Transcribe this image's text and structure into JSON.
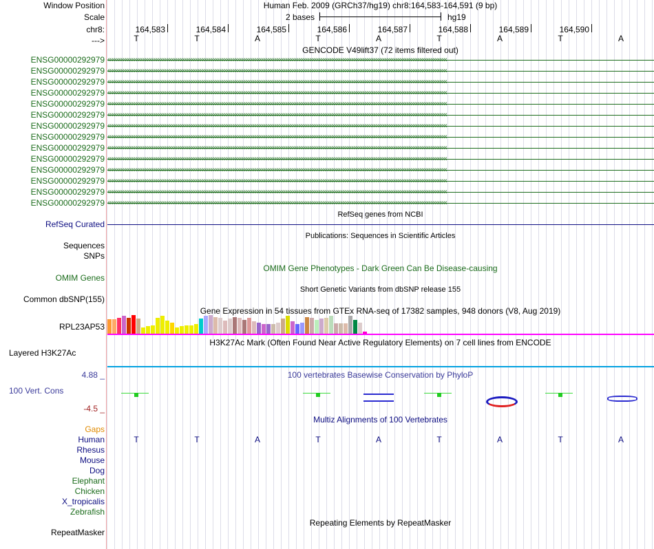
{
  "header": {
    "window_position_label": "Window Position",
    "assembly_title": "Human Feb. 2009 (GRCh37/hg19)   chr8:164,583-164,591 (9 bp)",
    "scale_label": "Scale",
    "scale_bases": "2 bases",
    "scale_assembly": "hg19",
    "chrom_label": "chr8:",
    "strand_label": "--->"
  },
  "ruler": {
    "ticks": [
      "164,583",
      "164,584",
      "164,585",
      "164,586",
      "164,587",
      "164,588",
      "164,589",
      "164,590"
    ]
  },
  "bases": [
    "T",
    "T",
    "A",
    "T",
    "A",
    "T",
    "A",
    "T",
    "A"
  ],
  "gencode": {
    "title": "GENCODE V49lift37 (72 items filtered out)",
    "labels": [
      "ENSG00000292979",
      "ENSG00000292979",
      "ENSG00000292979",
      "ENSG00000292979",
      "ENSG00000292979",
      "ENSG00000292979",
      "ENSG00000292979",
      "ENSG00000292979",
      "ENSG00000292979",
      "ENSG00000292979",
      "ENSG00000292979",
      "ENSG00000292979",
      "ENSG00000292979",
      "ENSG00000292979"
    ],
    "arrows": "‹‹‹‹‹‹‹‹‹‹‹‹‹‹‹‹‹‹‹‹‹‹‹‹‹‹‹‹‹‹‹‹‹‹‹‹‹‹‹‹‹‹‹‹‹‹‹‹‹‹‹‹‹‹‹‹‹‹‹‹‹‹‹‹‹‹‹‹‹‹‹‹‹‹‹‹‹‹‹‹‹‹‹‹‹‹‹‹‹‹‹‹‹‹‹‹‹‹‹‹‹‹‹‹‹‹‹‹‹‹‹‹‹‹‹‹‹‹‹‹‹‹‹‹‹‹‹‹‹‹‹‹‹‹‹‹‹‹‹‹‹‹‹‹‹‹‹‹‹‹‹‹‹‹‹‹‹‹‹‹‹‹‹‹‹‹‹‹‹‹‹‹‹‹‹‹‹‹‹‹‹‹‹‹‹"
  },
  "refseq": {
    "title": "RefSeq genes from NCBI",
    "label": "RefSeq Curated"
  },
  "publications": {
    "title": "Publications: Sequences in Scientific Articles",
    "label_sequences": "Sequences",
    "label_snps": "SNPs"
  },
  "omim": {
    "title": "OMIM Gene Phenotypes - Dark Green Can Be Disease-causing",
    "label": "OMIM Genes"
  },
  "dbsnp": {
    "title": "Short Genetic Variants from dbSNP release 155",
    "label": "Common dbSNP(155)"
  },
  "gtex": {
    "title": "Gene Expression in 54 tissues from GTEx RNA-seq of 17382 samples, 948 donors (V8, Aug 2019)",
    "label": "RPL23AP53",
    "bar_colors": [
      "#ff9933",
      "#ffaa66",
      "#ff3366",
      "#cc66cc",
      "#cc3300",
      "#ff0000",
      "#ccaa88",
      "#eeee00",
      "#eeee00",
      "#eeee00",
      "#eeee00",
      "#eeee00",
      "#eeee00",
      "#ffd700",
      "#eeee00",
      "#eeee00",
      "#eeee00",
      "#eeee00",
      "#eeee00",
      "#00cccc",
      "#aaaaff",
      "#ccaacc",
      "#ddbbaa",
      "#ddcccc",
      "#ddbbbb",
      "#ddcccc",
      "#aa7777",
      "#ddbbbb",
      "#aa7777",
      "#dd9999",
      "#ddbbbb",
      "#9966cc",
      "#cc66cc",
      "#9966cc",
      "#ccbbaa",
      "#ddcccc",
      "#ccaa88",
      "#dddd00",
      "#cc66cc",
      "#6666ff",
      "#9999ff",
      "#cc8844",
      "#ccaaaa",
      "#bbeebb",
      "#ccaacc",
      "#ddccaa",
      "#bbddbb",
      "#ccaaaa",
      "#ccbbaa",
      "#ddbbaa",
      "#aaaaaa",
      "#008844",
      "#ddcccc",
      "#ff00cc"
    ],
    "bar_heights": [
      0.78,
      0.78,
      0.85,
      0.95,
      0.85,
      1.0,
      0.8,
      0.35,
      0.4,
      0.45,
      0.85,
      0.95,
      0.7,
      0.6,
      0.35,
      0.4,
      0.45,
      0.45,
      0.5,
      0.8,
      0.95,
      1.0,
      0.9,
      0.85,
      0.7,
      0.8,
      0.9,
      0.85,
      0.75,
      0.85,
      0.65,
      0.6,
      0.5,
      0.5,
      0.5,
      0.6,
      0.8,
      0.95,
      0.65,
      0.5,
      0.6,
      0.9,
      0.85,
      0.75,
      0.8,
      0.85,
      0.95,
      0.55,
      0.55,
      0.55,
      0.95,
      0.75,
      0.6,
      0.12
    ]
  },
  "h3k27ac": {
    "title": "H3K27Ac Mark (Often Found Near Active Regulatory Elements) on 7 cell lines from ENCODE",
    "label": "Layered H3K27Ac"
  },
  "phylop": {
    "title": "100 vertebrates Basewise Conservation by PhyloP",
    "label": "100 Vert. Cons",
    "max_value": "4.88 _",
    "min_value": "-4.5 _"
  },
  "multiz": {
    "title": "Multiz Alignments of 100 Vertebrates",
    "species": [
      "Gaps",
      "Human",
      "Rhesus",
      "Mouse",
      "Dog",
      "Elephant",
      "Chicken",
      "X_tropicalis",
      "Zebrafish"
    ],
    "species_colors": [
      "#e08a00",
      "#0b0b80",
      "#0b0b80",
      "#0b0b80",
      "#0b0b80",
      "#1a6b1a",
      "#1a6b1a",
      "#0b0b80",
      "#1a6b1a"
    ]
  },
  "repeatmasker": {
    "title": "Repeating Elements by RepeatMasker",
    "label": "RepeatMasker"
  },
  "colors": {
    "gene_green": "#1a6b1a",
    "refseq_navy": "#0b0b80",
    "phylop_blue": "#3a3a9a",
    "h3k27ac_line": "#00a0e0",
    "gtex_baseline": "#ff00ff"
  }
}
